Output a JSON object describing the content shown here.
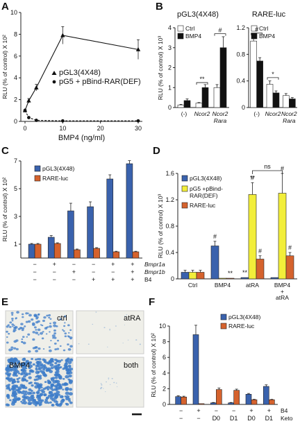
{
  "panels": {
    "A": "A",
    "B": "B",
    "C": "C",
    "D": "D",
    "E": "E",
    "F": "F"
  },
  "colors": {
    "blue": "#3a62ad",
    "orange": "#d5622d",
    "yellow": "#f2ee3a",
    "white": "#ffffff",
    "black": "#111111",
    "cell": "#3d7cc9"
  },
  "chart_data": [
    {
      "id": "A",
      "type": "line",
      "ylabel": "RLU (% of control) X 10²",
      "xlabel": "BMP4 (ng/ml)",
      "xlim": [
        0,
        30
      ],
      "ylim": [
        0,
        10
      ],
      "xticks": [
        "0",
        "10",
        "20",
        "30"
      ],
      "yticks": [
        "0",
        "2",
        "4",
        "6",
        "8",
        "10"
      ],
      "series": [
        {
          "name": "pGL3(4X48)",
          "marker": "triangle",
          "style": "solid",
          "x": [
            0,
            1,
            3,
            10,
            30
          ],
          "y": [
            1,
            1.9,
            3.1,
            7.9,
            6.6
          ],
          "err": [
            0.1,
            0.2,
            0.3,
            0.8,
            0.9
          ]
        },
        {
          "name": "pG5 + pBind-RAR(DEF)",
          "marker": "circle",
          "style": "dashed",
          "x": [
            0,
            1,
            3,
            10,
            30
          ],
          "y": [
            1,
            0.35,
            0.1,
            0.05,
            0.05
          ],
          "err": [
            0,
            0,
            0,
            0,
            0
          ]
        }
      ]
    },
    {
      "id": "B1",
      "type": "bar",
      "title": "pGL3(4X48)",
      "ylabel": "RLU (% of control) X 10³",
      "ylim": [
        0,
        4
      ],
      "yticks": [
        "0",
        "1",
        "2",
        "3",
        "4"
      ],
      "categories": [
        "(-)",
        "Ncor2",
        "Ncor2 Rara"
      ],
      "series": [
        {
          "name": "Ctrl",
          "values": [
            0.13,
            0.22,
            1.0
          ],
          "err": [
            0.03,
            0.03,
            0.15
          ]
        },
        {
          "name": "BMP4",
          "values": [
            0.35,
            1.0,
            3.0
          ],
          "err": [
            0.08,
            0.15,
            0.55
          ]
        }
      ],
      "significance": [
        "**",
        "#"
      ]
    },
    {
      "id": "B2",
      "type": "bar",
      "title": "RARE-luc",
      "ylim": [
        0,
        1.2
      ],
      "yticks": [
        "0",
        "0.4",
        "0.8",
        "1.2"
      ],
      "categories": [
        "(-)",
        "Ncor2",
        "Ncor2 Rara"
      ],
      "series": [
        {
          "name": "Ctrl",
          "values": [
            1.0,
            0.35,
            0.18
          ],
          "err": [
            0.08,
            0.05,
            0.03
          ]
        },
        {
          "name": "BMP4",
          "values": [
            0.7,
            0.22,
            0.13
          ],
          "err": [
            0.05,
            0.03,
            0.02
          ]
        }
      ],
      "significance": [
        "#",
        "*"
      ]
    },
    {
      "id": "C",
      "type": "bar",
      "ylabel": "RLU (% of control) X 10²",
      "ylim": [
        0,
        7
      ],
      "yticks": [
        "1",
        "3",
        "5",
        "7"
      ],
      "categories": [
        "c1",
        "c2",
        "c3",
        "c4",
        "c5",
        "c6"
      ],
      "row_labels": [
        "Bmpr1a",
        "Bmpr1b",
        "B4"
      ],
      "rows": [
        [
          "−",
          "+",
          "−",
          "−",
          "+",
          "+"
        ],
        [
          "−",
          "−",
          "+",
          "−",
          "−",
          "+"
        ],
        [
          "−",
          "−",
          "−",
          "+",
          "+",
          "+"
        ]
      ],
      "series": [
        {
          "name": "pGL3(4X48)",
          "values": [
            1.0,
            1.5,
            3.4,
            3.7,
            5.7,
            6.8
          ],
          "err": [
            0.05,
            0.12,
            0.55,
            0.35,
            0.3,
            0.22
          ]
        },
        {
          "name": "RARE-luc",
          "values": [
            1.0,
            1.05,
            0.6,
            0.7,
            0.45,
            0.45
          ],
          "err": [
            0.05,
            0.05,
            0.05,
            0.05,
            0.04,
            0.04
          ]
        }
      ]
    },
    {
      "id": "D",
      "type": "bar",
      "ylabel": "RLU (% of control) X 10³",
      "ylim": [
        0,
        1.6
      ],
      "yticks": [
        "0",
        "0.4",
        "0.8",
        "1.2",
        "1.6"
      ],
      "categories": [
        "Ctrl",
        "BMP4",
        "atRA",
        "BMP4 + atRA"
      ],
      "series": [
        {
          "name": "pGL3(4X48)",
          "values": [
            0.1,
            0.5,
            0.02,
            0.02
          ],
          "err": [
            0.03,
            0.07,
            0,
            0
          ]
        },
        {
          "name": "pG5 +pBind-RAR(DEF)",
          "values": [
            0.1,
            0.01,
            1.28,
            1.3
          ],
          "err": [
            0.03,
            0,
            0.18,
            0.3
          ]
        },
        {
          "name": "RARE-luc",
          "values": [
            0.1,
            0.01,
            0.3,
            0.35
          ],
          "err": [
            0.03,
            0,
            0.05,
            0.05
          ]
        }
      ],
      "annotations": [
        "#",
        "**",
        "**",
        "#",
        "#",
        "**",
        "#",
        "#",
        "ns"
      ]
    },
    {
      "id": "F",
      "type": "bar",
      "ylabel": "RLU (% of control) X 10²",
      "ylim": [
        0,
        10
      ],
      "yticks": [
        "0",
        "2",
        "4",
        "6",
        "8",
        "10"
      ],
      "categories": [
        "f1",
        "f2",
        "f3",
        "f4",
        "f5",
        "f6"
      ],
      "row_labels": [
        "B4",
        "Keto"
      ],
      "rows": [
        [
          "−",
          "+",
          "−",
          "−",
          "+",
          "+"
        ],
        [
          "−",
          "−",
          "D0",
          "D1",
          "D0",
          "D1"
        ]
      ],
      "series": [
        {
          "name": "pGL3(4X48)",
          "values": [
            1.0,
            8.9,
            0.2,
            0.2,
            1.3,
            2.3
          ],
          "err": [
            0.1,
            1.2,
            0.05,
            0.05,
            0.1,
            0.2
          ]
        },
        {
          "name": "RARE-luc",
          "values": [
            0.95,
            0.1,
            1.9,
            1.8,
            0.6,
            0.6
          ],
          "err": [
            0.1,
            0.02,
            0.2,
            0.15,
            0.05,
            0.05
          ]
        }
      ]
    }
  ],
  "micro": {
    "labels": [
      "ctrl",
      "atRA",
      "BMP4",
      "both"
    ]
  }
}
